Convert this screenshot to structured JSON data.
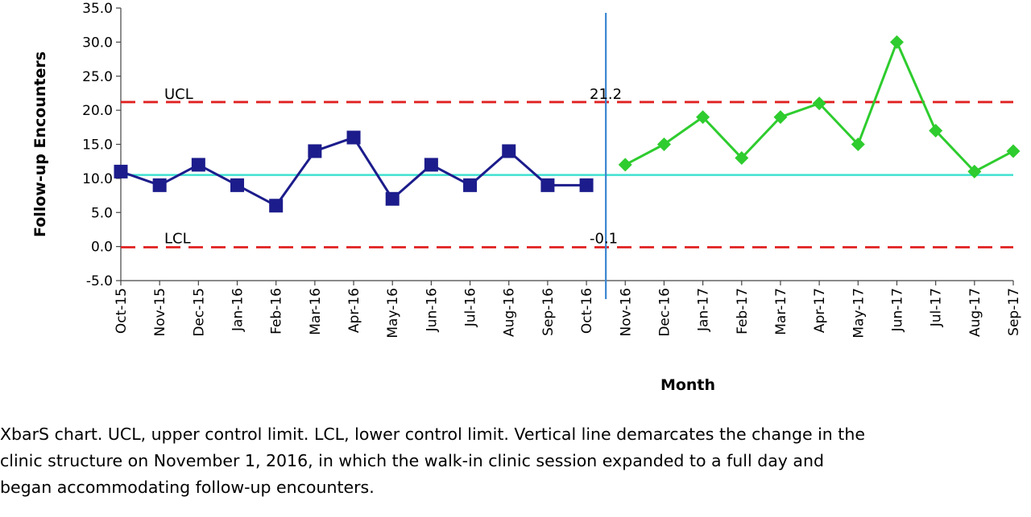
{
  "chart_data": {
    "type": "line",
    "xlabel": "Month",
    "ylabel": "Follow-up Encounters",
    "ylim": [
      -5,
      35
    ],
    "yticks": [
      "-5.0",
      "0.0",
      "5.0",
      "10.0",
      "15.0",
      "20.0",
      "25.0",
      "30.0",
      "35.0"
    ],
    "categories": [
      "Oct-15",
      "Nov-15",
      "Dec-15",
      "Jan-16",
      "Feb-16",
      "Mar-16",
      "Apr-16",
      "May-16",
      "Jun-16",
      "Jul-16",
      "Aug-16",
      "Sep-16",
      "Oct-16",
      "Nov-16",
      "Dec-16",
      "Jan-17",
      "Feb-17",
      "Mar-17",
      "Apr-17",
      "May-17",
      "Jun-17",
      "Jul-17",
      "Aug-17",
      "Sep-17"
    ],
    "series": [
      {
        "color": "#1c1c8c",
        "marker": "square",
        "x": [
          "Oct-15",
          "Nov-15",
          "Dec-15",
          "Jan-16",
          "Feb-16",
          "Mar-16",
          "Apr-16",
          "May-16",
          "Jun-16",
          "Jul-16",
          "Aug-16",
          "Sep-16",
          "Oct-16"
        ],
        "values": [
          11,
          9,
          12,
          9,
          6,
          14,
          16,
          7,
          12,
          9,
          14,
          9,
          9
        ]
      },
      {
        "color": "#2ecc2e",
        "marker": "diamond",
        "x": [
          "Nov-16",
          "Dec-16",
          "Jan-17",
          "Feb-17",
          "Mar-17",
          "Apr-17",
          "May-17",
          "Jun-17",
          "Jul-17",
          "Aug-17",
          "Sep-17"
        ],
        "values": [
          12,
          15,
          19,
          13,
          19,
          21,
          15,
          30,
          17,
          11,
          14
        ]
      }
    ],
    "center_line": {
      "value": 10.5,
      "color": "#40e0d0"
    },
    "ucl": {
      "label": "UCL",
      "value": 21.2,
      "value_label": "21.2",
      "color": "#e02020"
    },
    "lcl": {
      "label": "LCL",
      "value": -0.1,
      "value_label": "-0.1",
      "color": "#e02020"
    },
    "phase_change": {
      "between": [
        "Oct-16",
        "Nov-16"
      ],
      "color": "#3a86d0"
    },
    "grid": false,
    "legend": "none"
  },
  "caption": {
    "lines": [
      "XbarS chart. UCL, upper control limit. LCL, lower control limit. Vertical line demarcates the change in the",
      "clinic structure on November 1, 2016, in which the walk-in clinic session expanded to a full day and",
      "began accommodating follow-up encounters."
    ]
  }
}
